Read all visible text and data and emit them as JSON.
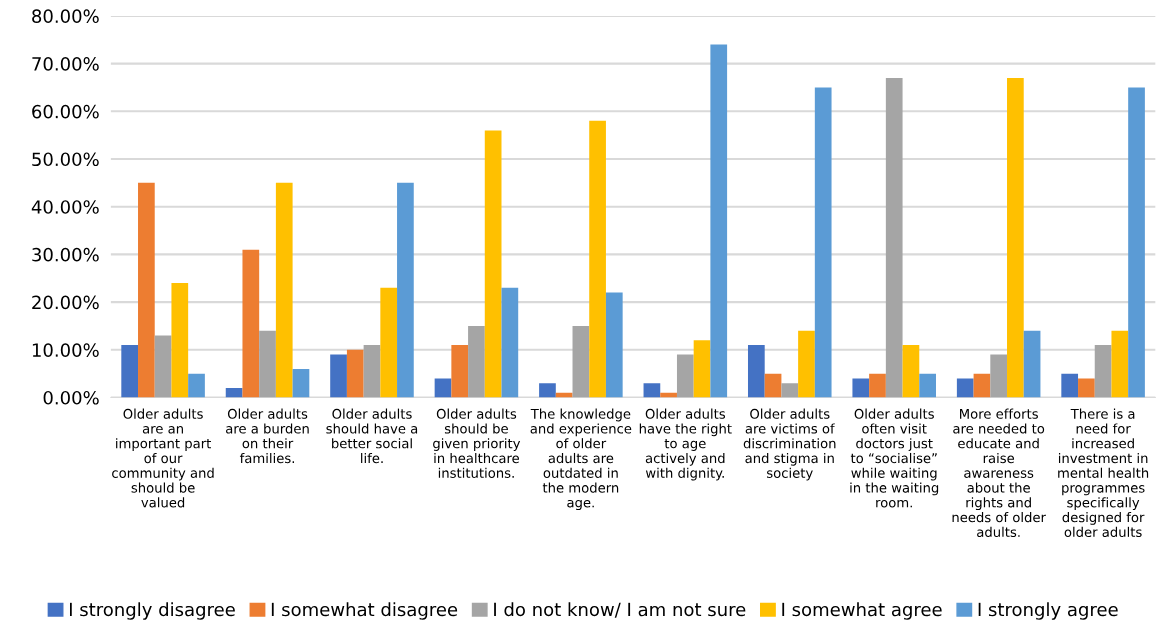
{
  "chart_data": {
    "type": "bar",
    "categories": [
      "Older adults are an important part of our community and should be valued",
      "Older adults are a burden on their families.",
      "Older adults should have a better social life.",
      "Older adults should be given priority in healthcare institutions.",
      "The knowledge and experience of older adults are outdated in the modern age.",
      "Older adults have the right to age actively and with dignity.",
      "Older adults are victims of discrimination and stigma in society",
      "Older adults often visit doctors just to “socialise” while waiting in the waiting room.",
      "More efforts are needed to educate and raise awareness about the rights and needs of older adults.",
      "There is a need for increased investment in mental health programmes specifically designed for older adults"
    ],
    "series": [
      {
        "name": "I strongly disagree",
        "color": "#4472c4",
        "values": [
          11,
          2,
          9,
          4,
          3,
          3,
          11,
          4,
          4,
          5
        ]
      },
      {
        "name": "I somewhat disagree",
        "color": "#ed7d31",
        "values": [
          45,
          31,
          10,
          11,
          1,
          1,
          5,
          5,
          5,
          4
        ]
      },
      {
        "name": "I do not know/ I am not sure",
        "color": "#a5a5a5",
        "values": [
          13,
          14,
          11,
          15,
          15,
          9,
          3,
          67,
          9,
          11
        ]
      },
      {
        "name": "I somewhat agree",
        "color": "#ffc000",
        "values": [
          24,
          45,
          23,
          56,
          58,
          12,
          14,
          11,
          67,
          14
        ]
      },
      {
        "name": "I strongly agree",
        "color": "#5b9bd5",
        "values": [
          5,
          6,
          45,
          23,
          22,
          74,
          65,
          5,
          14,
          65
        ]
      }
    ],
    "ylim": [
      0,
      80
    ],
    "yticks": [
      {
        "value": 0,
        "label": "0.00%"
      },
      {
        "value": 10,
        "label": "10.00%"
      },
      {
        "value": 20,
        "label": "20.00%"
      },
      {
        "value": 30,
        "label": "30.00%"
      },
      {
        "value": 40,
        "label": "40.00%"
      },
      {
        "value": 50,
        "label": "50.00%"
      },
      {
        "value": 60,
        "label": "60.00%"
      },
      {
        "value": 70,
        "label": "70.00%"
      },
      {
        "value": 80,
        "label": "80.00%"
      }
    ],
    "grid": "y",
    "legend": "bottom"
  }
}
